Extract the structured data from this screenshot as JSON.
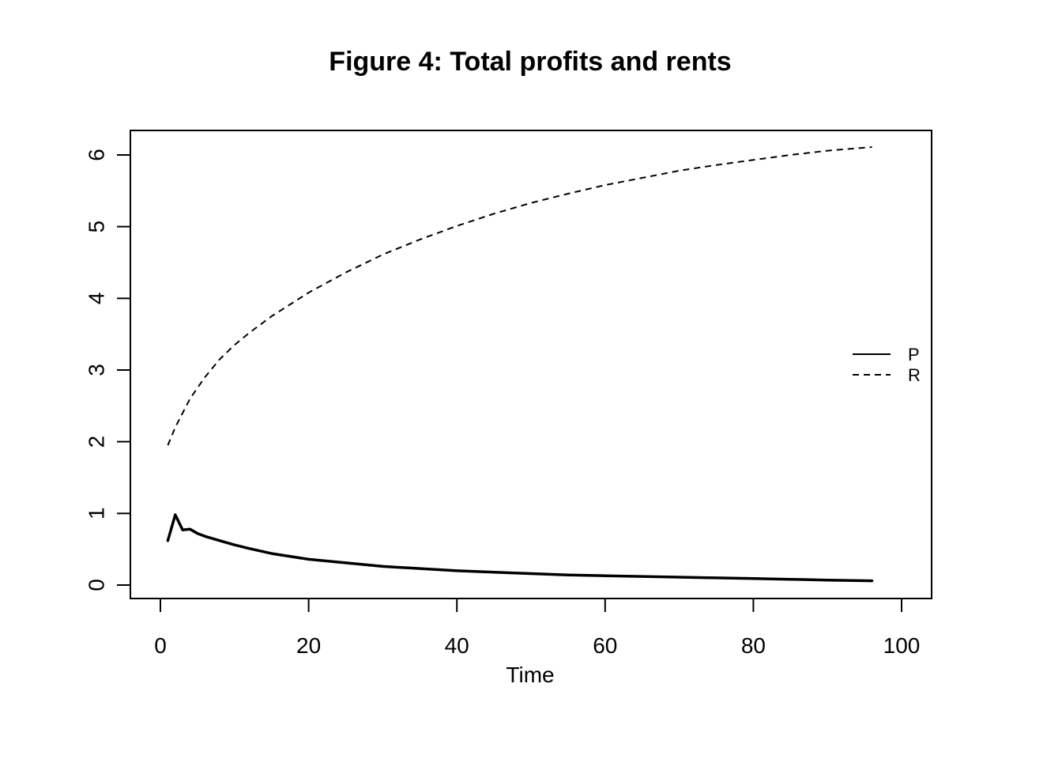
{
  "chart_data": {
    "type": "line",
    "title": "Figure 4: Total profits and rents",
    "xlabel": "Time",
    "ylabel": "",
    "xlim": [
      0,
      100
    ],
    "ylim": [
      0,
      6
    ],
    "x_ticks": [
      0,
      20,
      40,
      60,
      80,
      100
    ],
    "y_ticks": [
      0,
      1,
      2,
      3,
      4,
      5,
      6
    ],
    "grid": false,
    "legend_position": "right",
    "series": [
      {
        "name": "P",
        "line_style": "solid",
        "color": "#000000",
        "points": [
          [
            1,
            0.62
          ],
          [
            2,
            0.98
          ],
          [
            3,
            0.77
          ],
          [
            4,
            0.78
          ],
          [
            5,
            0.72
          ],
          [
            6,
            0.68
          ],
          [
            8,
            0.62
          ],
          [
            10,
            0.56
          ],
          [
            12,
            0.51
          ],
          [
            15,
            0.44
          ],
          [
            20,
            0.36
          ],
          [
            25,
            0.31
          ],
          [
            30,
            0.26
          ],
          [
            35,
            0.23
          ],
          [
            40,
            0.2
          ],
          [
            45,
            0.18
          ],
          [
            50,
            0.16
          ],
          [
            55,
            0.14
          ],
          [
            60,
            0.13
          ],
          [
            65,
            0.12
          ],
          [
            70,
            0.11
          ],
          [
            75,
            0.1
          ],
          [
            80,
            0.09
          ],
          [
            85,
            0.08
          ],
          [
            90,
            0.07
          ],
          [
            96,
            0.06
          ]
        ]
      },
      {
        "name": "R",
        "line_style": "dashed",
        "color": "#000000",
        "points": [
          [
            1,
            1.95
          ],
          [
            2,
            2.2
          ],
          [
            3,
            2.4
          ],
          [
            4,
            2.6
          ],
          [
            5,
            2.75
          ],
          [
            6,
            2.9
          ],
          [
            8,
            3.15
          ],
          [
            10,
            3.35
          ],
          [
            12,
            3.52
          ],
          [
            15,
            3.75
          ],
          [
            20,
            4.08
          ],
          [
            25,
            4.36
          ],
          [
            30,
            4.61
          ],
          [
            35,
            4.82
          ],
          [
            40,
            5.01
          ],
          [
            45,
            5.18
          ],
          [
            50,
            5.33
          ],
          [
            55,
            5.46
          ],
          [
            60,
            5.58
          ],
          [
            65,
            5.68
          ],
          [
            70,
            5.78
          ],
          [
            75,
            5.86
          ],
          [
            80,
            5.93
          ],
          [
            85,
            6.0
          ],
          [
            90,
            6.06
          ],
          [
            96,
            6.11
          ]
        ]
      }
    ]
  }
}
